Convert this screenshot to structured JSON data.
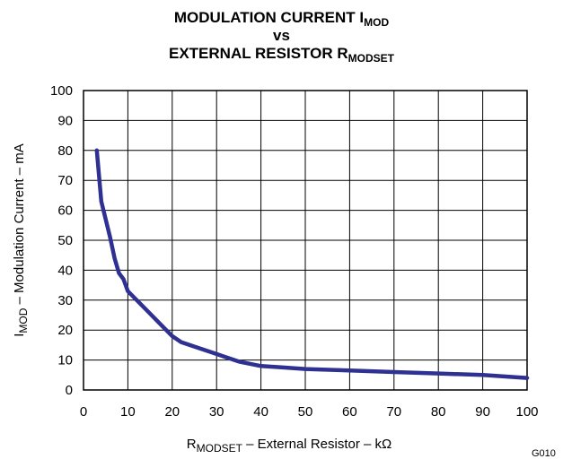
{
  "figure_id": "G010",
  "chart_data": {
    "type": "line",
    "title": {
      "line1_main": "MODULATION CURRENT I",
      "line1_sub": "MOD",
      "line2": "vs",
      "line3_main": "EXTERNAL RESISTOR R",
      "line3_sub": "MODSET"
    },
    "xlabel": {
      "main": "R",
      "sub": "MODSET",
      "rest": " – External Resistor – kΩ"
    },
    "ylabel": {
      "main": "I",
      "sub": "MOD",
      "rest": " – Modulation Current – mA"
    },
    "xlim": [
      0,
      100
    ],
    "ylim": [
      0,
      100
    ],
    "xticks": [
      0,
      10,
      20,
      30,
      40,
      50,
      60,
      70,
      80,
      90,
      100
    ],
    "yticks": [
      0,
      10,
      20,
      30,
      40,
      50,
      60,
      70,
      80,
      90,
      100
    ],
    "grid": true,
    "line_color": "#2e3192",
    "series": [
      {
        "x": [
          3,
          4,
          5,
          6,
          7,
          8,
          9,
          10,
          12,
          15,
          18,
          20,
          22,
          25,
          30,
          35,
          40,
          45,
          50,
          60,
          70,
          80,
          90,
          100
        ],
        "values": [
          80,
          63,
          57,
          51,
          44,
          39,
          37,
          33,
          30,
          25.5,
          21,
          18,
          16,
          14.5,
          12,
          9.5,
          8,
          7.5,
          7,
          6.5,
          6,
          5.5,
          5,
          4
        ]
      }
    ]
  }
}
